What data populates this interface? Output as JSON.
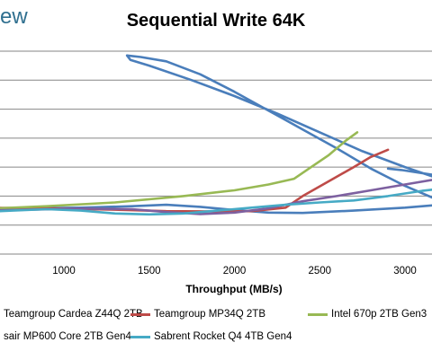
{
  "brand": "ew",
  "chart_data": {
    "type": "line",
    "title": "Sequential Write 64K",
    "xlabel": "Throughput (MB/s)",
    "ylabel": "",
    "xlim": [
      500,
      3200
    ],
    "ylim": [
      0,
      700
    ],
    "y_gridlines": [
      0,
      100,
      200,
      300,
      400,
      500,
      600,
      700
    ],
    "x_ticks": [
      1000,
      1500,
      2000,
      2500,
      3000
    ],
    "grid": true,
    "legend_position": "bottom",
    "series": [
      {
        "name": "Teamgroup Cardea Z44Q 2TB",
        "color": "#4a7ebb",
        "points": [
          [
            500,
            155
          ],
          [
            800,
            158
          ],
          [
            1100,
            160
          ],
          [
            1400,
            165
          ],
          [
            1600,
            170
          ],
          [
            1800,
            163
          ],
          [
            2000,
            152
          ],
          [
            2200,
            143
          ],
          [
            2400,
            142
          ],
          [
            2700,
            150
          ],
          [
            3000,
            160
          ],
          [
            3200,
            170
          ],
          [
            3200,
            185
          ],
          [
            3000,
            235
          ],
          [
            2800,
            295
          ],
          [
            2600,
            365
          ],
          [
            2400,
            430
          ],
          [
            2200,
            495
          ],
          [
            2000,
            560
          ],
          [
            1800,
            620
          ],
          [
            1600,
            665
          ],
          [
            1450,
            680
          ],
          [
            1370,
            685
          ],
          [
            1390,
            670
          ],
          [
            1500,
            650
          ],
          [
            1750,
            600
          ],
          [
            2000,
            545
          ],
          [
            2250,
            485
          ],
          [
            2500,
            420
          ],
          [
            2750,
            355
          ],
          [
            3000,
            300
          ],
          [
            3200,
            260
          ],
          [
            3200,
            270
          ],
          [
            2980,
            290
          ],
          [
            2900,
            295
          ]
        ]
      },
      {
        "name": "Teamgroup MP34Q 2TB",
        "color": "#be4b48",
        "points": [
          [
            500,
            160
          ],
          [
            900,
            158
          ],
          [
            1300,
            153
          ],
          [
            1600,
            148
          ],
          [
            1900,
            147
          ],
          [
            2100,
            148
          ],
          [
            2300,
            160
          ],
          [
            2400,
            200
          ],
          [
            2550,
            250
          ],
          [
            2700,
            300
          ],
          [
            2800,
            335
          ],
          [
            2900,
            360
          ]
        ]
      },
      {
        "name": "Intel 670p 2TB Gen3",
        "color": "#98b954",
        "points": [
          [
            500,
            155
          ],
          [
            900,
            165
          ],
          [
            1300,
            178
          ],
          [
            1700,
            200
          ],
          [
            2000,
            220
          ],
          [
            2200,
            240
          ],
          [
            2350,
            260
          ],
          [
            2450,
            300
          ],
          [
            2550,
            340
          ],
          [
            2650,
            390
          ],
          [
            2720,
            420
          ]
        ]
      },
      {
        "name": "sair MP600 Core 2TB Gen4",
        "color": "#7d60a0",
        "points": [
          [
            500,
            150
          ],
          [
            800,
            153
          ],
          [
            1100,
            157
          ],
          [
            1400,
            155
          ],
          [
            1600,
            145
          ],
          [
            1800,
            138
          ],
          [
            2000,
            143
          ],
          [
            2200,
            158
          ],
          [
            2400,
            182
          ],
          [
            2600,
            200
          ],
          [
            2800,
            220
          ],
          [
            3000,
            240
          ],
          [
            3200,
            260
          ]
        ]
      },
      {
        "name": "Sabrent Rocket Q4 4TB Gen4",
        "color": "#46aac5",
        "points": [
          [
            500,
            145
          ],
          [
            700,
            150
          ],
          [
            900,
            155
          ],
          [
            1100,
            150
          ],
          [
            1300,
            140
          ],
          [
            1500,
            137
          ],
          [
            1700,
            140
          ],
          [
            1900,
            150
          ],
          [
            2100,
            160
          ],
          [
            2300,
            170
          ],
          [
            2500,
            178
          ],
          [
            2700,
            185
          ],
          [
            2900,
            200
          ],
          [
            3100,
            218
          ],
          [
            3200,
            225
          ]
        ]
      }
    ]
  }
}
